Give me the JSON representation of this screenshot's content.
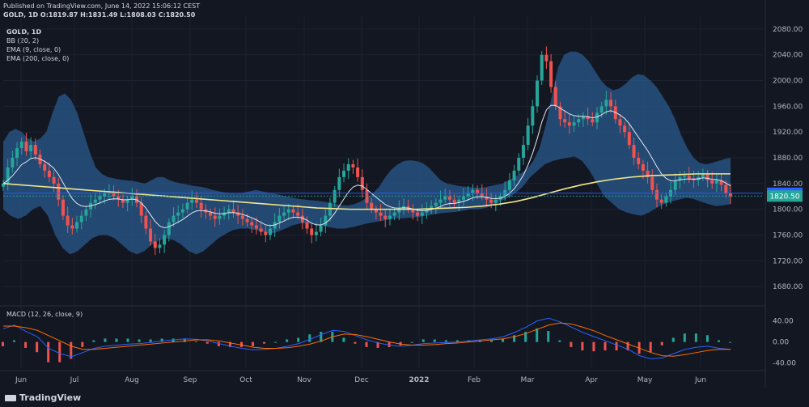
{
  "header": {
    "published": "Published on TradingView.com, June 14, 2022 15:06:12 CEST",
    "ohlc": "GOLD, 1D  O:1819.87  H:1831.49  L:1808.03  C:1820.50"
  },
  "legend": {
    "symbol": "GOLD, 1D",
    "bb": "BB (20, 2)",
    "ema9": "EMA (9, close, 0)",
    "ema200": "EMA (200, close, 0)"
  },
  "macd_label": "MACD (12, 26, close, 9)",
  "footer": {
    "brand": "TradingView"
  },
  "colors": {
    "bg": "#131722",
    "up": "#26a69a",
    "down": "#ef5350",
    "band": "#2a5a8c",
    "ema9": "#e0e6f0",
    "ema200": "#f0e68c",
    "macd": "#2962ff",
    "signal": "#ff6d00",
    "grid": "#1e2230"
  },
  "chart_data": {
    "type": "candlestick",
    "price_axis": {
      "min": 1660,
      "max": 2100,
      "ticks": [
        2080,
        2040,
        2000,
        1960,
        1920,
        1880,
        1840,
        1800,
        1760,
        1720,
        1680
      ]
    },
    "price_labels": [
      {
        "value": 1824.91,
        "text": "1824.91",
        "color": "#2962ff"
      },
      {
        "value": 1820.5,
        "text": "1820.50",
        "color": "#26a69a"
      }
    ],
    "months": [
      "Jun",
      "Jul",
      "Aug",
      "Sep",
      "Oct",
      "Nov",
      "Dec",
      "2022",
      "Feb",
      "Mar",
      "Apr",
      "May",
      "Jun"
    ],
    "closes": [
      1840,
      1865,
      1880,
      1895,
      1905,
      1890,
      1900,
      1885,
      1870,
      1860,
      1850,
      1840,
      1815,
      1790,
      1775,
      1770,
      1780,
      1790,
      1800,
      1810,
      1815,
      1820,
      1825,
      1825,
      1820,
      1815,
      1810,
      1815,
      1820,
      1810,
      1790,
      1770,
      1750,
      1740,
      1745,
      1760,
      1780,
      1790,
      1795,
      1800,
      1810,
      1815,
      1810,
      1800,
      1795,
      1790,
      1785,
      1790,
      1795,
      1800,
      1795,
      1790,
      1785,
      1780,
      1775,
      1770,
      1765,
      1760,
      1770,
      1780,
      1790,
      1795,
      1800,
      1795,
      1790,
      1780,
      1770,
      1760,
      1765,
      1775,
      1790,
      1810,
      1830,
      1850,
      1860,
      1870,
      1865,
      1850,
      1830,
      1810,
      1800,
      1795,
      1790,
      1785,
      1790,
      1795,
      1800,
      1805,
      1800,
      1795,
      1790,
      1795,
      1800,
      1805,
      1810,
      1815,
      1820,
      1815,
      1810,
      1815,
      1820,
      1825,
      1830,
      1825,
      1820,
      1815,
      1810,
      1815,
      1820,
      1830,
      1845,
      1860,
      1880,
      1900,
      1930,
      1960,
      2000,
      2040,
      2030,
      1990,
      1960,
      1940,
      1935,
      1930,
      1935,
      1940,
      1945,
      1940,
      1935,
      1950,
      1960,
      1970,
      1960,
      1940,
      1930,
      1920,
      1900,
      1880,
      1870,
      1860,
      1850,
      1830,
      1815,
      1810,
      1820,
      1830,
      1845,
      1850,
      1852,
      1848,
      1845,
      1850,
      1855,
      1845,
      1840,
      1845,
      1838,
      1825,
      1820
    ],
    "bb_upper": [
      1905,
      1920,
      1925,
      1920,
      1910,
      1905,
      1910,
      1920,
      1950,
      1975,
      1980,
      1970,
      1950,
      1920,
      1890,
      1865,
      1855,
      1850,
      1848,
      1846,
      1845,
      1844,
      1842,
      1840,
      1845,
      1850,
      1850,
      1845,
      1842,
      1840,
      1838,
      1836,
      1835,
      1833,
      1830,
      1828,
      1826,
      1825,
      1824,
      1826,
      1828,
      1830,
      1828,
      1826,
      1824,
      1822,
      1820,
      1818,
      1816,
      1815,
      1814,
      1813,
      1812,
      1810,
      1808,
      1806,
      1806,
      1808,
      1812,
      1818,
      1825,
      1835,
      1850,
      1862,
      1870,
      1875,
      1876,
      1875,
      1872,
      1865,
      1855,
      1845,
      1840,
      1838,
      1836,
      1835,
      1834,
      1833,
      1834,
      1836,
      1838,
      1840,
      1845,
      1850,
      1856,
      1862,
      1875,
      1895,
      1930,
      1975,
      2020,
      2040,
      2045,
      2045,
      2040,
      2030,
      2015,
      2000,
      1990,
      1985,
      1988,
      1995,
      2005,
      2010,
      2008,
      2000,
      1990,
      1975,
      1960,
      1940,
      1915,
      1895,
      1880,
      1872,
      1870,
      1872,
      1875,
      1878,
      1880
    ],
    "bb_lower": [
      1800,
      1790,
      1785,
      1790,
      1800,
      1805,
      1790,
      1760,
      1740,
      1730,
      1735,
      1745,
      1755,
      1760,
      1760,
      1755,
      1745,
      1735,
      1730,
      1735,
      1745,
      1752,
      1755,
      1752,
      1745,
      1735,
      1730,
      1735,
      1745,
      1755,
      1762,
      1768,
      1770,
      1770,
      1768,
      1765,
      1762,
      1765,
      1770,
      1775,
      1778,
      1778,
      1776,
      1774,
      1772,
      1770,
      1770,
      1772,
      1775,
      1778,
      1780,
      1782,
      1784,
      1786,
      1786,
      1787,
      1788,
      1790,
      1792,
      1794,
      1795,
      1796,
      1798,
      1800,
      1800,
      1802,
      1806,
      1812,
      1818,
      1825,
      1835,
      1850,
      1860,
      1870,
      1875,
      1878,
      1880,
      1882,
      1875,
      1860,
      1840,
      1820,
      1810,
      1800,
      1795,
      1792,
      1790,
      1795,
      1802,
      1808,
      1812,
      1815,
      1818,
      1816,
      1812,
      1808,
      1805,
      1806,
      1808
    ],
    "ema200": [
      1840,
      1838,
      1836,
      1834,
      1832,
      1830,
      1828,
      1826,
      1824,
      1822,
      1820,
      1818,
      1816,
      1814,
      1812,
      1810,
      1808,
      1806,
      1804,
      1802,
      1801,
      1800,
      1800,
      1800,
      1800,
      1800,
      1801,
      1802,
      1803,
      1805,
      1808,
      1812,
      1818,
      1825,
      1832,
      1838,
      1843,
      1847,
      1850,
      1852,
      1853,
      1854,
      1855,
      1855,
      1855
    ],
    "macd": [
      25,
      32,
      20,
      10,
      -12,
      -22,
      -28,
      -20,
      -12,
      -8,
      -6,
      -4,
      -3,
      -1,
      2,
      4,
      6,
      5,
      2,
      -3,
      -8,
      -12,
      -15,
      -14,
      -12,
      -8,
      -3,
      5,
      14,
      22,
      20,
      12,
      4,
      -2,
      -6,
      -8,
      -6,
      -3,
      -2,
      -1,
      0,
      2,
      4,
      6,
      10,
      18,
      28,
      40,
      45,
      38,
      28,
      18,
      10,
      2,
      -6,
      -14,
      -26,
      -32,
      -30,
      -22,
      -14,
      -10,
      -8,
      -12,
      -14
    ],
    "signal": [
      30,
      30,
      27,
      22,
      12,
      2,
      -8,
      -14,
      -14,
      -12,
      -10,
      -8,
      -6,
      -4,
      -2,
      0,
      2,
      4,
      4,
      2,
      -2,
      -6,
      -10,
      -12,
      -12,
      -11,
      -8,
      -4,
      2,
      10,
      15,
      14,
      10,
      5,
      0,
      -4,
      -6,
      -6,
      -5,
      -3,
      -2,
      0,
      2,
      4,
      6,
      10,
      16,
      24,
      32,
      36,
      34,
      28,
      21,
      12,
      4,
      -4,
      -12,
      -20,
      -26,
      -27,
      -24,
      -20,
      -16,
      -14,
      -14
    ],
    "macd_axis": {
      "ticks": [
        40,
        0.0,
        -40
      ],
      "labels": [
        "40.00",
        "0.00",
        "-40.00"
      ]
    }
  }
}
